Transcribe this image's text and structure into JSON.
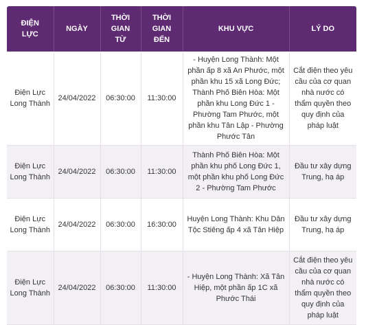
{
  "table": {
    "headers": [
      {
        "line1": "ĐIỆN",
        "line2": "LỰC"
      },
      {
        "line1": "NGÀY",
        "line2": ""
      },
      {
        "line1": "THỜI",
        "line2": "GIAN",
        "line3": "TỪ"
      },
      {
        "line1": "THỜI",
        "line2": "GIAN",
        "line3": "ĐẾN"
      },
      {
        "line1": "KHU VỰC",
        "line2": ""
      },
      {
        "line1": "LÝ DO",
        "line2": ""
      }
    ],
    "rows": [
      {
        "dien_luc": "Điện Lực Long Thành",
        "ngay": "24/04/2022",
        "tu": "06:30:00",
        "den": "11:30:00",
        "khu_vuc": "- Huyện Long Thành: Một phần ấp 8 xã An Phước, một phần khu 15 xã Long Đức; Thành Phố Biên Hòa: Một phần khu Long Đức 1 - Phường Tam Phước, một phần khu Tân Lập - Phường Phước Tân",
        "ly_do": "Cắt điện theo yêu cầu của cơ quan nhà nước có thẩm quyền theo quy định của pháp luật"
      },
      {
        "dien_luc": "Điện Lực Long Thành",
        "ngay": "24/04/2022",
        "tu": "06:30:00",
        "den": "11:30:00",
        "khu_vuc": "Thành Phố Biên Hòa: Một phần khu phố Long Đức 1, một phần khu phố Long Đức 2 - Phường Tam Phước",
        "ly_do": "Đầu tư xây dựng Trung, hạ áp"
      },
      {
        "dien_luc": "Điện Lực Long Thành",
        "ngay": "24/04/2022",
        "tu": "06:30:00",
        "den": "16:30:00",
        "khu_vuc": "Huyện Long Thành: Khu Dân Tộc Stiêng ấp 4 xã Tân Hiệp",
        "ly_do": "Đầu tư xây dựng Trung, hạ áp"
      },
      {
        "dien_luc": "Điện Lực Long Thành",
        "ngay": "24/04/2022",
        "tu": "06:30:00",
        "den": "11:30:00",
        "khu_vuc": "- Huyện Long Thành: Xã Tân Hiệp, một phần ấp 1C xã Phước Thái",
        "ly_do": "Cắt điện theo yêu cầu của cơ quan nhà nước có thẩm quyền theo quy định của pháp luật"
      }
    ]
  },
  "colors": {
    "header_bg": "#5e2a72",
    "header_text": "#ffffff",
    "row_alt_bg": "#f3f0f5",
    "text": "#333333"
  }
}
